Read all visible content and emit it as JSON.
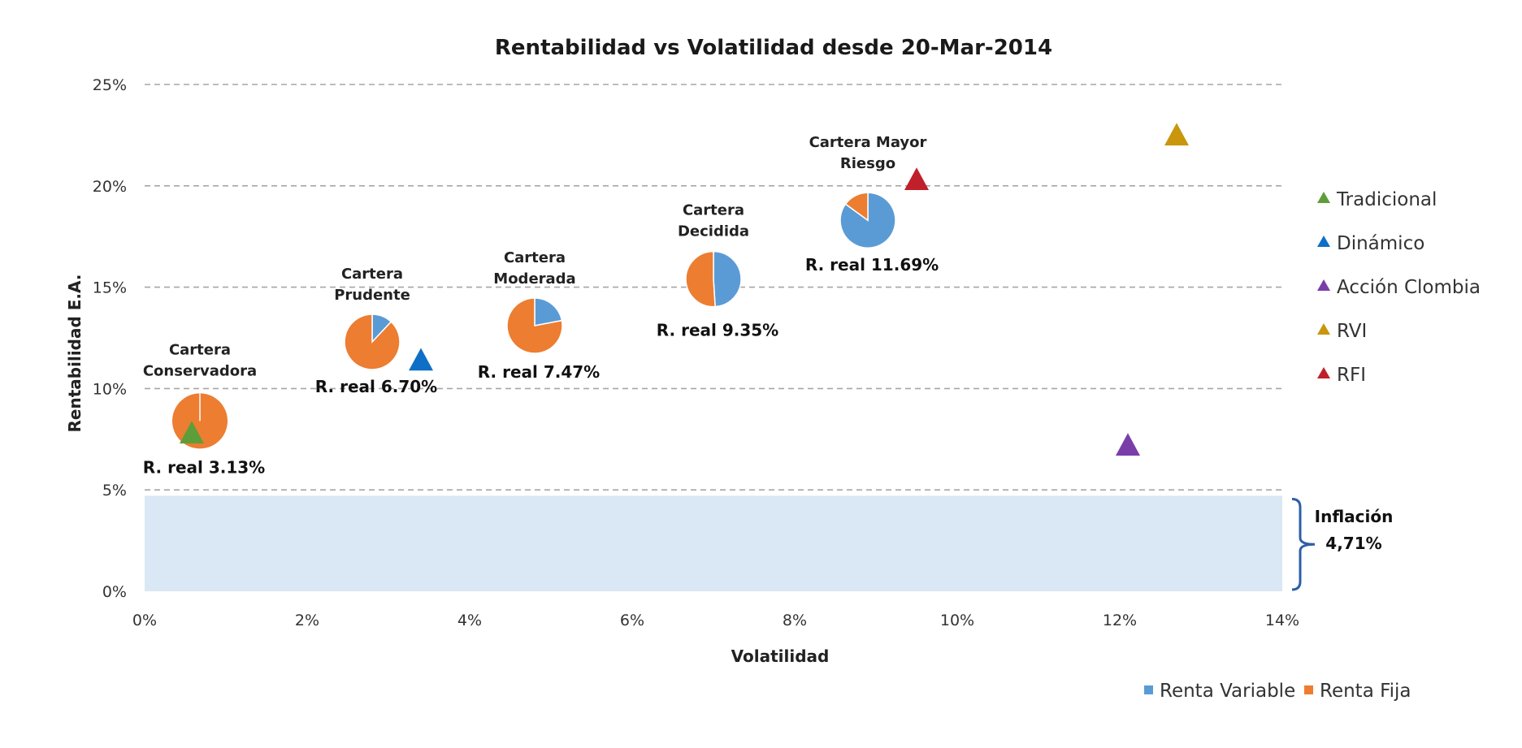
{
  "chart_data": {
    "type": "scatter",
    "title": "Rentabilidad vs Volatilidad desde 20-Mar-2014",
    "xlabel": "Volatilidad",
    "ylabel": "Rentabilidad  E.A.",
    "xlim": [
      0,
      14
    ],
    "ylim": [
      0,
      25
    ],
    "grid": true,
    "x_ticks": [
      0,
      2,
      4,
      6,
      8,
      10,
      12,
      14
    ],
    "x_tick_labels": [
      "0%",
      "2%",
      "4%",
      "6%",
      "8%",
      "10%",
      "12%",
      "14%"
    ],
    "y_ticks": [
      0,
      5,
      10,
      15,
      20,
      25
    ],
    "y_tick_labels": [
      "0%",
      "5%",
      "10%",
      "15%",
      "20%",
      "25%"
    ],
    "colors": {
      "grid": "#a6a6a6",
      "renta_variable": "#5b9bd5",
      "renta_fija": "#ed7d31",
      "inflation_band": "#dae7f4",
      "bracket": "#2e5fa8"
    },
    "pies": [
      {
        "name": "Cartera Conservadora",
        "label": [
          "Cartera",
          "Conservadora"
        ],
        "x": 0.68,
        "y": 8.4,
        "renta_variable_pct": 0,
        "renta_fija_pct": 100,
        "real_label": "R. real 3.13%"
      },
      {
        "name": "Cartera Prudente",
        "label": [
          "Cartera",
          "Prudente"
        ],
        "x": 2.8,
        "y": 12.3,
        "renta_variable_pct": 12,
        "renta_fija_pct": 88,
        "real_label": "R. real 6.70%"
      },
      {
        "name": "Cartera Moderada",
        "label": [
          "Cartera",
          "Moderada"
        ],
        "x": 4.8,
        "y": 13.1,
        "renta_variable_pct": 22,
        "renta_fija_pct": 78,
        "real_label": "R. real 7.47%"
      },
      {
        "name": "Cartera Decidida",
        "label": [
          "Cartera",
          "Decidida"
        ],
        "x": 7.0,
        "y": 15.4,
        "renta_variable_pct": 49,
        "renta_fija_pct": 51,
        "real_label": "R. real 9.35%"
      },
      {
        "name": "Cartera Mayor Riesgo",
        "label": [
          "Cartera Mayor",
          "Riesgo"
        ],
        "x": 8.9,
        "y": 18.3,
        "renta_variable_pct": 85,
        "renta_fija_pct": 15,
        "real_label": "R. real 11.69%"
      }
    ],
    "series": [
      {
        "name": "Tradicional",
        "color": "#5e9e3a",
        "x": 0.58,
        "y": 7.8
      },
      {
        "name": "Dinámico",
        "color": "#0f6fc6",
        "x": 3.4,
        "y": 11.4
      },
      {
        "name": "Acción Clombia",
        "color": "#7a3ea8",
        "x": 12.1,
        "y": 7.2
      },
      {
        "name": "RVI",
        "color": "#c9960c",
        "x": 12.7,
        "y": 22.5
      },
      {
        "name": "RFI",
        "color": "#c0202a",
        "x": 9.5,
        "y": 20.3
      }
    ],
    "inflation": {
      "value": 4.71,
      "label": "Inflación",
      "value_label": "4,71%"
    },
    "pie_legend": [
      {
        "name": "Renta Variable",
        "color": "#5b9bd5"
      },
      {
        "name": "Renta Fija",
        "color": "#ed7d31"
      }
    ]
  }
}
